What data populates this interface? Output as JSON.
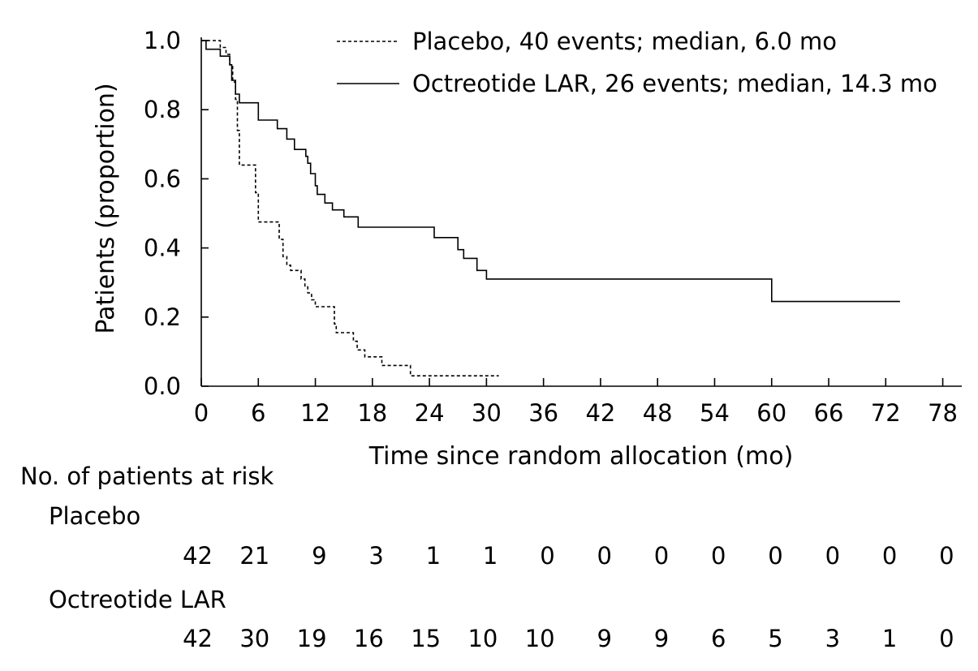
{
  "chart_data": {
    "type": "line",
    "subtype": "kaplan-meier",
    "title": "",
    "xlabel": "Time since random allocation (mo)",
    "ylabel": "Patients (proportion)",
    "xlim": [
      0,
      80
    ],
    "ylim": [
      0,
      1.0
    ],
    "xticks": [
      0,
      6,
      12,
      18,
      24,
      30,
      36,
      42,
      48,
      54,
      60,
      66,
      72,
      78
    ],
    "yticks": [
      "0.0",
      "0.2",
      "0.4",
      "0.6",
      "0.8",
      "1.0"
    ],
    "grid": false,
    "legend_position": "top-right",
    "series": [
      {
        "name": "Placebo, 40 events; median, 6.0 mo",
        "line_style": "dashed",
        "color": "#000000",
        "steps": [
          [
            0,
            1.0
          ],
          [
            2,
            0.98
          ],
          [
            2.6,
            0.96
          ],
          [
            3,
            0.93
          ],
          [
            3.3,
            0.88
          ],
          [
            3.6,
            0.83
          ],
          [
            3.8,
            0.74
          ],
          [
            4,
            0.64
          ],
          [
            5.7,
            0.56
          ],
          [
            6,
            0.475
          ],
          [
            8.2,
            0.425
          ],
          [
            8.6,
            0.375
          ],
          [
            9,
            0.35
          ],
          [
            9.4,
            0.335
          ],
          [
            10.5,
            0.31
          ],
          [
            10.9,
            0.29
          ],
          [
            11.2,
            0.27
          ],
          [
            11.6,
            0.25
          ],
          [
            12,
            0.23
          ],
          [
            14,
            0.18
          ],
          [
            14.2,
            0.155
          ],
          [
            16,
            0.13
          ],
          [
            16.4,
            0.105
          ],
          [
            17.2,
            0.085
          ],
          [
            19,
            0.06
          ],
          [
            22,
            0.03
          ],
          [
            31.3,
            0.03
          ]
        ]
      },
      {
        "name": "Octreotide LAR, 26 events; median, 14.3 mo",
        "line_style": "solid",
        "color": "#000000",
        "steps": [
          [
            0,
            1.0
          ],
          [
            0.5,
            0.975
          ],
          [
            2,
            0.955
          ],
          [
            3,
            0.93
          ],
          [
            3.2,
            0.885
          ],
          [
            3.6,
            0.845
          ],
          [
            4,
            0.82
          ],
          [
            6,
            0.77
          ],
          [
            8,
            0.745
          ],
          [
            9,
            0.715
          ],
          [
            9.8,
            0.685
          ],
          [
            11,
            0.665
          ],
          [
            11.2,
            0.645
          ],
          [
            11.5,
            0.615
          ],
          [
            12,
            0.58
          ],
          [
            12.2,
            0.555
          ],
          [
            13,
            0.53
          ],
          [
            13.8,
            0.51
          ],
          [
            15,
            0.49
          ],
          [
            16.5,
            0.46
          ],
          [
            24.5,
            0.43
          ],
          [
            27,
            0.395
          ],
          [
            27.6,
            0.37
          ],
          [
            29,
            0.335
          ],
          [
            30,
            0.31
          ],
          [
            60,
            0.245
          ],
          [
            73.5,
            0.245
          ]
        ]
      }
    ],
    "risk_table": {
      "header": "No. of patients at risk",
      "rows": [
        {
          "label": "Placebo",
          "values": [
            "42",
            "21",
            "9",
            "3",
            "1",
            "1",
            "0",
            "0",
            "0",
            "0",
            "0",
            "0",
            "0",
            "0"
          ]
        },
        {
          "label": "Octreotide LAR",
          "values": [
            "42",
            "30",
            "19",
            "16",
            "15",
            "10",
            "10",
            "9",
            "9",
            "6",
            "5",
            "3",
            "1",
            "0"
          ]
        }
      ]
    }
  }
}
